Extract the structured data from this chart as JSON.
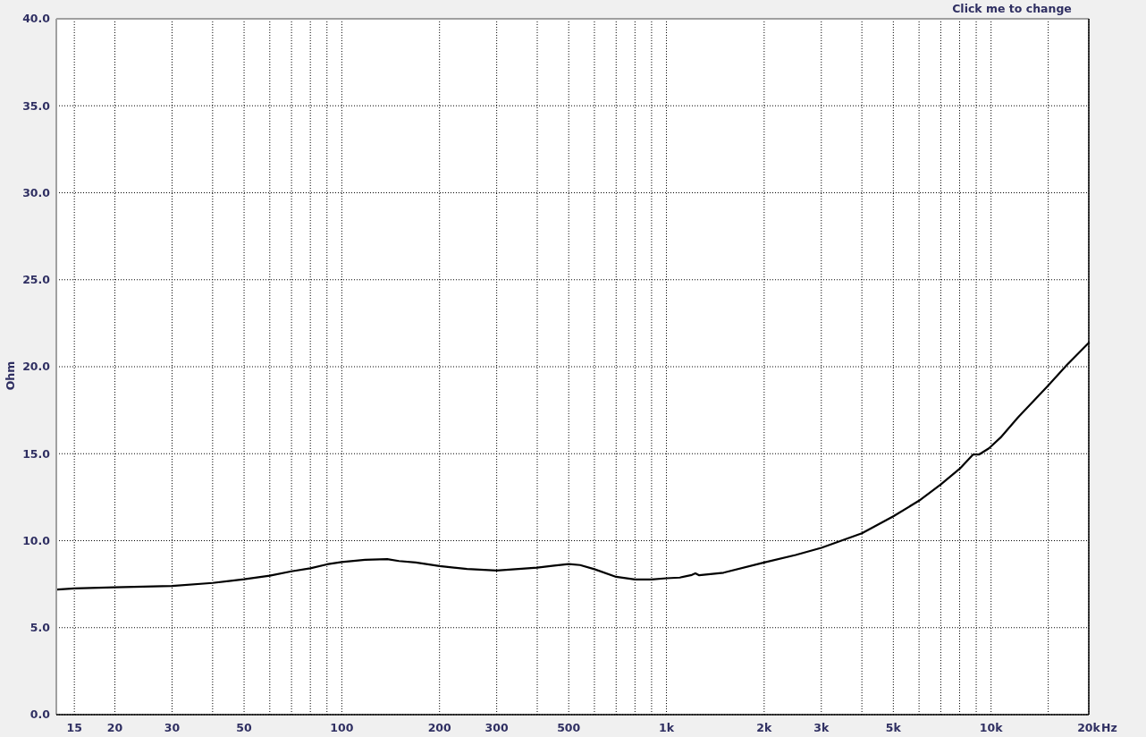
{
  "chart_data": {
    "type": "line",
    "xlabel": "Hz",
    "ylabel": "Ohm",
    "annotations": [
      "Click me to change"
    ],
    "log": "x",
    "grid": true,
    "color": "#000000",
    "xlim": [
      13.2,
      20000
    ],
    "xticks": [
      15,
      20,
      30,
      {
        "value": 40,
        "label": null
      },
      50,
      {
        "value": 60,
        "label": null
      },
      {
        "value": 70,
        "label": null
      },
      {
        "value": 80,
        "label": null
      },
      {
        "value": 90,
        "label": null
      },
      100,
      200,
      300,
      {
        "value": 400,
        "label": null
      },
      500,
      {
        "value": 600,
        "label": null
      },
      {
        "value": 700,
        "label": null
      },
      {
        "value": 800,
        "label": null
      },
      {
        "value": 900,
        "label": null
      },
      {
        "value": 1000,
        "label": "1k"
      },
      {
        "value": 2000,
        "label": "2k"
      },
      {
        "value": 3000,
        "label": "3k"
      },
      {
        "value": 4000,
        "label": null
      },
      {
        "value": 5000,
        "label": "5k"
      },
      {
        "value": 6000,
        "label": null
      },
      {
        "value": 7000,
        "label": null
      },
      {
        "value": 8000,
        "label": null
      },
      {
        "value": 9000,
        "label": null
      },
      {
        "value": 10000,
        "label": "10k"
      },
      {
        "value": 15000,
        "label": null
      },
      {
        "value": 20000,
        "label": "20k"
      }
    ],
    "ylim": [
      0,
      40
    ],
    "yticks": [
      {
        "value": 0,
        "label": "0.0"
      },
      {
        "value": 5,
        "label": "5.0"
      },
      {
        "value": 10,
        "label": "10.0"
      },
      {
        "value": 15,
        "label": "15.0"
      },
      {
        "value": 20,
        "label": "20.0"
      },
      {
        "value": 25,
        "label": "25.0"
      },
      {
        "value": 30,
        "label": "30.0"
      },
      {
        "value": 35,
        "label": "35.0"
      },
      {
        "value": 40,
        "label": "40.0"
      }
    ],
    "x": [
      13.3,
      15,
      20,
      30,
      40,
      50,
      60,
      70,
      80,
      90,
      100,
      118,
      138,
      150,
      169,
      200,
      243,
      300,
      400,
      451,
      500,
      542,
      600,
      700,
      800,
      900,
      1000,
      1100,
      1197,
      1228,
      1262,
      1500,
      2000,
      2500,
      3000,
      4000,
      5000,
      6000,
      7000,
      8000,
      8800,
      9200,
      9850,
      10700,
      12100,
      15000,
      17100,
      20000
    ],
    "values": [
      7.19,
      7.26,
      7.32,
      7.4,
      7.57,
      7.78,
      7.99,
      8.24,
      8.41,
      8.64,
      8.77,
      8.9,
      8.94,
      8.83,
      8.75,
      8.54,
      8.37,
      8.28,
      8.45,
      8.57,
      8.66,
      8.6,
      8.36,
      7.92,
      7.77,
      7.77,
      7.84,
      7.88,
      8.03,
      8.12,
      8.01,
      8.16,
      8.75,
      9.18,
      9.59,
      10.42,
      11.4,
      12.3,
      13.23,
      14.13,
      14.95,
      14.96,
      15.31,
      15.93,
      17.08,
      18.92,
      20.09,
      21.38
    ]
  }
}
